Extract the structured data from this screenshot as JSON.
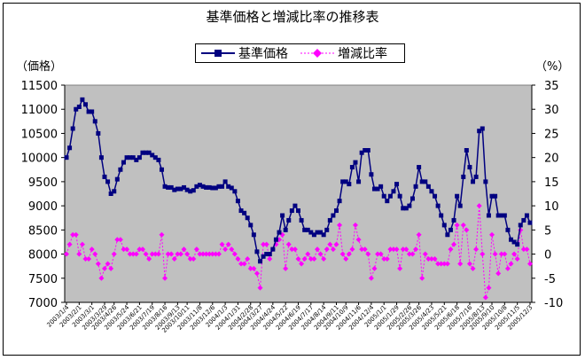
{
  "chart_data": {
    "type": "line",
    "title": "基準価格と増減比率の推移表",
    "legend": [
      "基準価格",
      "増減比率"
    ],
    "legend_position": "top",
    "y_left_label": "（価格）",
    "y_right_label": "（%）",
    "ylim_left": [
      7000,
      11500
    ],
    "ylim_right": [
      -10,
      35
    ],
    "y_left_ticks": [
      7000,
      7500,
      8000,
      8500,
      9000,
      9500,
      10000,
      10500,
      11000,
      11500
    ],
    "y_right_ticks": [
      -10,
      -5,
      0,
      5,
      10,
      15,
      20,
      25,
      30,
      35
    ],
    "grid": false,
    "plot_background": "#c0c0c0",
    "series": [
      {
        "name": "基準価格",
        "axis": "left",
        "color": "#000080",
        "marker": "square",
        "values": [
          10000,
          10200,
          10600,
          11000,
          11050,
          11200,
          11100,
          10950,
          10950,
          10750,
          10500,
          10000,
          9600,
          9500,
          9250,
          9300,
          9550,
          9750,
          9900,
          10000,
          10000,
          10000,
          9950,
          10000,
          10100,
          10100,
          10100,
          10050,
          10000,
          9950,
          9750,
          9400,
          9380,
          9380,
          9330,
          9350,
          9350,
          9380,
          9330,
          9300,
          9320,
          9400,
          9430,
          9400,
          9380,
          9380,
          9370,
          9370,
          9400,
          9400,
          9500,
          9400,
          9370,
          9300,
          9100,
          8900,
          8850,
          8750,
          8600,
          8400,
          8050,
          7850,
          7950,
          8000,
          8000,
          8100,
          8300,
          8450,
          8800,
          8500,
          8700,
          8900,
          9000,
          8900,
          8700,
          8500,
          8500,
          8450,
          8400,
          8450,
          8450,
          8400,
          8500,
          8700,
          8800,
          8900,
          9100,
          9500,
          9500,
          9450,
          9800,
          9900,
          9500,
          10100,
          10150,
          10150,
          9650,
          9350,
          9350,
          9400,
          9200,
          9100,
          9200,
          9300,
          9450,
          9200,
          8950,
          8950,
          9000,
          9150,
          9400,
          9800,
          9500,
          9500,
          9400,
          9300,
          9200,
          9000,
          8800,
          8600,
          8400,
          8500,
          8700,
          9200,
          9000,
          9600,
          10150,
          9800,
          9500,
          9600,
          10550,
          10600,
          9500,
          8800,
          9200,
          9200,
          8800,
          8800,
          8800,
          8500,
          8300,
          8250,
          8200,
          8600,
          8700,
          8800,
          8650
        ]
      },
      {
        "name": "増減比率",
        "axis": "right",
        "color": "#ff00ff",
        "marker": "diamond",
        "values": [
          0,
          2,
          4,
          4,
          0,
          2,
          -1,
          -1,
          1,
          0,
          -2,
          -5,
          -3,
          -2,
          -3,
          0,
          3,
          3,
          1,
          1,
          0,
          0,
          0,
          1,
          1,
          0,
          -1,
          0,
          0,
          0,
          4,
          -5,
          0,
          0,
          -1,
          0,
          0,
          1,
          0,
          -1,
          -1,
          1,
          0,
          0,
          0,
          0,
          0,
          0,
          0,
          2,
          1,
          2,
          1,
          0,
          -1,
          -2,
          -2,
          -1,
          -3,
          -3,
          -4,
          -7,
          2,
          2,
          -1,
          1,
          2,
          3,
          4,
          -3,
          2,
          1,
          1,
          -1,
          -2,
          -1,
          0,
          -1,
          -1,
          1,
          0,
          -1,
          1,
          2,
          1,
          2,
          6,
          0,
          -1,
          0,
          1,
          6,
          3,
          1,
          1,
          0,
          -5,
          -3,
          0,
          0,
          -1,
          -1,
          1,
          1,
          1,
          -3,
          1,
          1,
          0,
          0,
          1,
          4,
          -5,
          0,
          -1,
          -1,
          -1,
          -2,
          -2,
          -2,
          -2,
          1,
          2,
          6,
          -2,
          6,
          5,
          -2,
          -3,
          1,
          10,
          0,
          -9,
          -7,
          4,
          0,
          -4,
          0,
          0,
          -3,
          -2,
          0,
          -1,
          5,
          1,
          1,
          -2
        ]
      }
    ],
    "x_tick_labels": [
      "2003/1/4",
      "2003/2/1",
      "2003/3/1",
      "2003/3/29",
      "2003/4/26",
      "2003/5/24",
      "2003/6/21",
      "2003/7/19",
      "2003/8/16",
      "2003/9/13",
      "2003/10/11",
      "2003/11/8",
      "2003/12/6",
      "2004/1/3",
      "2004/1/31",
      "2004/2/28",
      "2004/3/27",
      "2004/4/24",
      "2004/5/22",
      "2004/6/19",
      "2004/7/17",
      "2004/8/14",
      "2004/9/11",
      "2004/10/9",
      "2004/11/6",
      "2004/12/4",
      "2005/1/1",
      "2005/1/29",
      "2005/2/26",
      "2005/3/26",
      "2005/4/23",
      "2005/5/21",
      "2005/6/18",
      "2005/7/16",
      "2005/8/13",
      "2005/9/10",
      "2005/10/8",
      "2005/11/5",
      "2005/12/3"
    ]
  }
}
